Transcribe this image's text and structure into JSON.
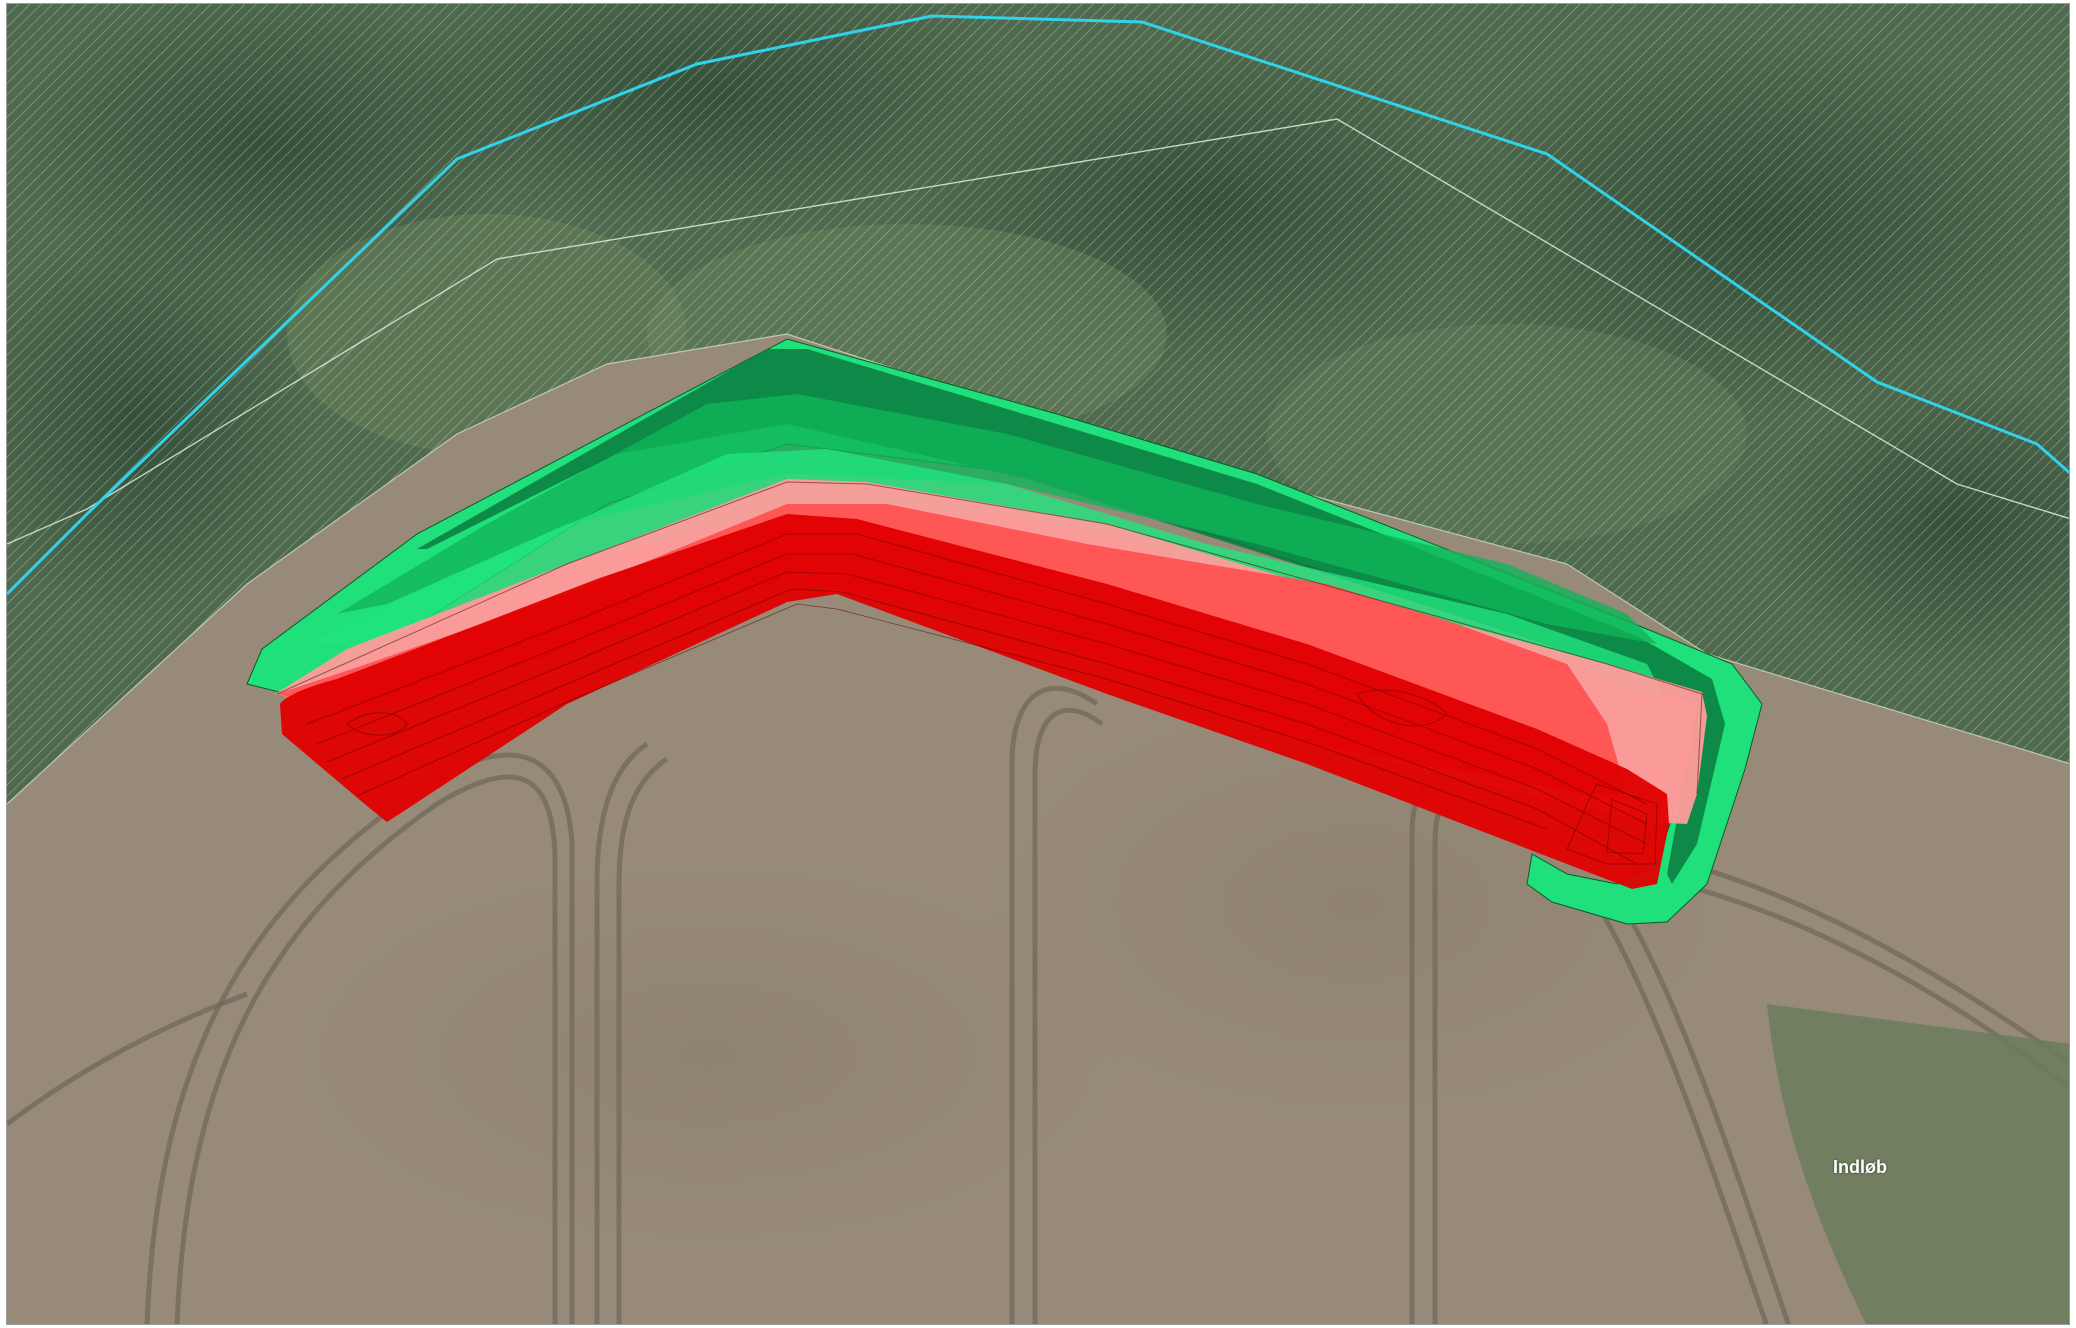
{
  "map": {
    "labels": {
      "inlet": "Indløb"
    },
    "colors": {
      "field": "#978a78",
      "field_track": "#6f6658",
      "vegetation": "#4f6a4e",
      "vegetation_dark": "#2f4a38",
      "hatch": "#cfe0d2",
      "watercourse": "#2fd3ea",
      "boundary": "#e2ead8",
      "green_light": "#1fe07a",
      "green_mid": "#10b45a",
      "green_dark": "#0a7a3e",
      "red_light": "#ff9c9c",
      "red_mid": "#ff5252",
      "red_dark": "#e00000"
    },
    "icons": {
      "hatched_area": "diagonal-hatch-pattern",
      "river_line": "watercourse-line",
      "basin": "basin-polygon"
    }
  }
}
